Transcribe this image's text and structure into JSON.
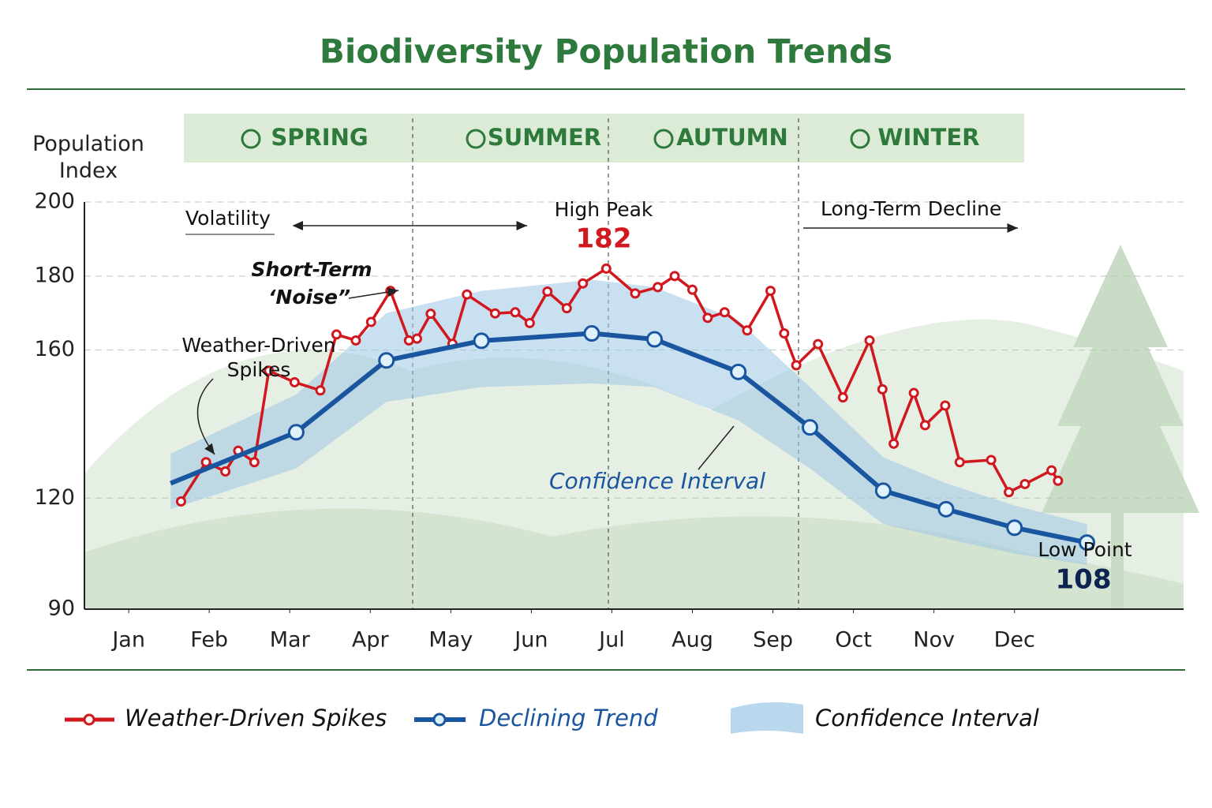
{
  "chart_data": {
    "type": "line",
    "title": "Biodiversity Population Trends",
    "y_label": "Population Index",
    "seasons": [
      "SPRING",
      "SUMMER",
      "AUTUMN",
      "WINTER"
    ],
    "xlim": [
      0.45,
      14.1
    ],
    "xticks": [
      {
        "value": 1,
        "label": "Jan"
      },
      {
        "value": 2,
        "label": "Feb"
      },
      {
        "value": 3,
        "label": "Mar"
      },
      {
        "value": 4,
        "label": "Apr"
      },
      {
        "value": 5,
        "label": "May"
      },
      {
        "value": 6,
        "label": "Jun"
      },
      {
        "value": 7,
        "label": "Jul"
      },
      {
        "value": 8,
        "label": "Aug"
      },
      {
        "value": 9,
        "label": "Sep"
      },
      {
        "value": 10,
        "label": "Oct"
      },
      {
        "value": 11,
        "label": "Nov"
      },
      {
        "value": 12,
        "label": "Dec"
      }
    ],
    "ylim": [
      90,
      200
    ],
    "yticks": [
      90,
      120,
      160,
      180,
      200
    ],
    "grid": true,
    "series": [
      {
        "name": "Weather-Driven Spikes",
        "color": "#d0181e",
        "x": [
          1.65,
          1.96,
          2.2,
          2.36,
          2.56,
          2.74,
          3.06,
          3.38,
          3.58,
          3.82,
          4.01,
          4.25,
          4.48,
          4.58,
          4.75,
          5.02,
          5.2,
          5.55,
          5.8,
          5.98,
          6.2,
          6.44,
          6.64,
          6.93,
          7.29,
          7.57,
          7.78,
          8.0,
          8.19,
          8.4,
          8.68,
          8.97,
          9.14,
          9.29,
          9.56,
          9.87,
          10.2,
          10.36,
          10.5,
          10.75,
          10.89,
          11.14,
          11.32,
          11.71,
          11.93,
          12.13,
          12.46,
          12.54
        ],
        "values": [
          119.1,
          129.7,
          127.2,
          132.8,
          129.7,
          154.4,
          151.3,
          149.1,
          164.2,
          162.6,
          167.6,
          176,
          162.6,
          163.1,
          169.8,
          161.7,
          175,
          169.9,
          170.2,
          167.3,
          175.8,
          171.3,
          178,
          182,
          175.3,
          177,
          180,
          176.3,
          168.7,
          170.2,
          165.3,
          176,
          164.5,
          155.9,
          161.6,
          147.2,
          162.6,
          149.4,
          134.7,
          148.4,
          139.7,
          145.0,
          129.7,
          130.3,
          121.6,
          123.8,
          127.5,
          124.7
        ]
      },
      {
        "name": "Declining Trend",
        "color": "#1a56a0",
        "x": [
          1.52,
          3.08,
          4.2,
          5.38,
          6.75,
          7.53,
          8.57,
          9.46,
          10.37,
          11.15,
          12.0,
          12.9
        ],
        "values": [
          124,
          137.8,
          157.2,
          162.5,
          164.5,
          162.9,
          154.1,
          139.1,
          122,
          117,
          112,
          108
        ]
      }
    ],
    "confidence_interval": {
      "name": "Confidence Interval",
      "color": "#9cc6e6",
      "x": [
        1.52,
        3.08,
        4.2,
        5.38,
        6.75,
        7.53,
        8.57,
        9.46,
        10.37,
        11.15,
        12.0,
        12.9
      ],
      "upper": [
        132,
        148,
        170,
        176,
        179,
        177,
        168,
        150,
        131,
        124,
        118,
        113
      ],
      "lower": [
        117,
        128,
        146,
        150,
        151,
        150,
        141,
        128,
        113,
        109,
        105,
        102
      ]
    },
    "annotations": {
      "volatility": "Volatility",
      "noise_1": "Short-Term",
      "noise_2": "‘Noise”",
      "spikes_1": "Weather-Driven",
      "spikes_2": "Spikes",
      "high_peak": "High Peak",
      "decline": "Long-Term Decline",
      "confidence": "Confidence Interval",
      "low_point": "Low Point"
    }
  }
}
